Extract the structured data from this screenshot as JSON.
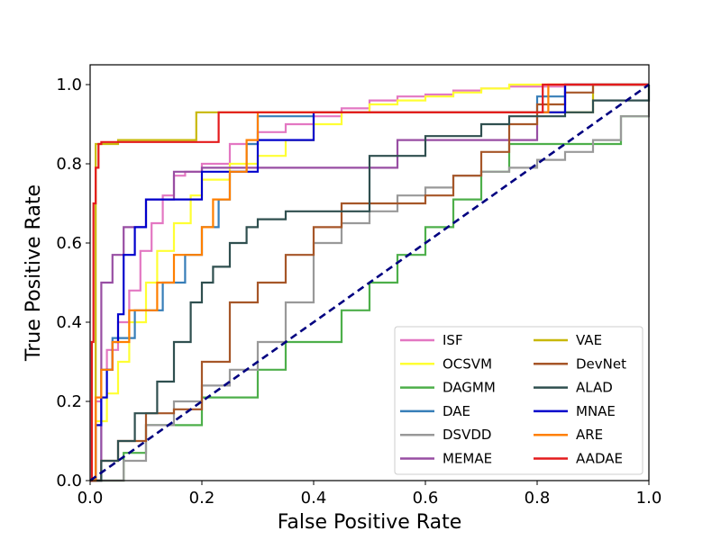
{
  "chart_data": {
    "type": "line",
    "title": "",
    "xlabel": "False Positive Rate",
    "ylabel": "True Positive Rate",
    "xlim": [
      0.0,
      1.0
    ],
    "ylim": [
      0.0,
      1.05
    ],
    "xticks": [
      "0.0",
      "0.2",
      "0.4",
      "0.6",
      "0.8",
      "1.0"
    ],
    "yticks": [
      "0.0",
      "0.2",
      "0.4",
      "0.6",
      "0.8",
      "1.0"
    ],
    "grid": false,
    "legend_position": "lower-right",
    "legend_columns": 2,
    "series": [
      {
        "name": "ISF",
        "color": "#e377c2",
        "x": [
          0,
          0.01,
          0.02,
          0.03,
          0.05,
          0.07,
          0.09,
          0.11,
          0.13,
          0.15,
          0.17,
          0.2,
          0.25,
          0.3,
          0.35,
          0.4,
          0.45,
          0.5,
          0.55,
          0.6,
          0.65,
          0.7,
          0.75,
          0.8,
          0.85,
          0.9,
          0.95,
          1.0
        ],
        "y": [
          0,
          0.2,
          0.28,
          0.33,
          0.4,
          0.48,
          0.58,
          0.65,
          0.72,
          0.77,
          0.78,
          0.8,
          0.85,
          0.88,
          0.9,
          0.92,
          0.94,
          0.96,
          0.97,
          0.975,
          0.985,
          0.99,
          0.995,
          0.995,
          1.0,
          1.0,
          1.0,
          1.0
        ]
      },
      {
        "name": "OCSVM",
        "color": "#ffff33",
        "x": [
          0,
          0.01,
          0.03,
          0.05,
          0.07,
          0.1,
          0.12,
          0.15,
          0.18,
          0.2,
          0.25,
          0.3,
          0.35,
          0.4,
          0.45,
          0.5,
          0.55,
          0.6,
          0.65,
          0.7,
          0.75,
          0.8,
          0.85,
          0.9,
          0.95,
          1.0
        ],
        "y": [
          0,
          0.15,
          0.22,
          0.3,
          0.4,
          0.5,
          0.58,
          0.65,
          0.72,
          0.76,
          0.8,
          0.82,
          0.86,
          0.9,
          0.93,
          0.95,
          0.96,
          0.97,
          0.98,
          0.99,
          1.0,
          1.0,
          1.0,
          1.0,
          1.0,
          1.0
        ]
      },
      {
        "name": "DAGMM",
        "color": "#4daf4a",
        "x": [
          0,
          0.06,
          0.1,
          0.15,
          0.2,
          0.25,
          0.3,
          0.35,
          0.4,
          0.45,
          0.5,
          0.55,
          0.6,
          0.65,
          0.7,
          0.75,
          0.8,
          0.85,
          0.9,
          0.95,
          1.0
        ],
        "y": [
          0,
          0.07,
          0.14,
          0.14,
          0.21,
          0.21,
          0.28,
          0.35,
          0.35,
          0.43,
          0.5,
          0.57,
          0.64,
          0.71,
          0.78,
          0.85,
          0.85,
          0.85,
          0.85,
          0.92,
          0.92
        ]
      },
      {
        "name": "DAE",
        "color": "#377eb8",
        "x": [
          0,
          0.02,
          0.04,
          0.08,
          0.13,
          0.17,
          0.2,
          0.23,
          0.25,
          0.28,
          0.3,
          0.35,
          0.4,
          0.5,
          0.6,
          0.7,
          0.8,
          0.85,
          0.9,
          0.95,
          1.0
        ],
        "y": [
          0,
          0.28,
          0.36,
          0.43,
          0.5,
          0.57,
          0.64,
          0.71,
          0.78,
          0.85,
          0.92,
          0.92,
          0.93,
          0.93,
          0.93,
          0.93,
          0.97,
          1.0,
          1.0,
          1.0,
          1.0
        ]
      },
      {
        "name": "DSVDD",
        "color": "#999999",
        "x": [
          0,
          0.06,
          0.1,
          0.15,
          0.2,
          0.25,
          0.3,
          0.35,
          0.4,
          0.45,
          0.5,
          0.55,
          0.6,
          0.65,
          0.7,
          0.75,
          0.8,
          0.85,
          0.9,
          0.95,
          1.0
        ],
        "y": [
          0,
          0.05,
          0.14,
          0.2,
          0.24,
          0.28,
          0.35,
          0.45,
          0.6,
          0.65,
          0.68,
          0.72,
          0.74,
          0.77,
          0.78,
          0.79,
          0.81,
          0.83,
          0.86,
          0.92,
          1.0
        ]
      },
      {
        "name": "MEMAE",
        "color": "#984ea3",
        "x": [
          0,
          0.02,
          0.04,
          0.06,
          0.1,
          0.15,
          0.2,
          0.25,
          0.3,
          0.4,
          0.5,
          0.55,
          0.6,
          0.7,
          0.75,
          0.8,
          0.85,
          1.0
        ],
        "y": [
          0,
          0.5,
          0.57,
          0.64,
          0.71,
          0.78,
          0.79,
          0.79,
          0.79,
          0.79,
          0.79,
          0.86,
          0.86,
          0.86,
          0.86,
          0.93,
          1.0,
          1.0
        ]
      },
      {
        "name": "VAE",
        "color": "#c8b80a",
        "x": [
          0,
          0.01,
          0.05,
          0.1,
          0.15,
          0.19,
          0.23,
          0.3,
          0.4,
          0.5,
          0.6,
          0.7,
          0.8,
          0.9,
          0.94,
          1.0
        ],
        "y": [
          0,
          0.85,
          0.86,
          0.86,
          0.86,
          0.93,
          0.93,
          0.93,
          0.93,
          0.93,
          0.93,
          0.93,
          0.93,
          1.0,
          1.0,
          1.0
        ]
      },
      {
        "name": "DevNet",
        "color": "#a65628",
        "x": [
          0,
          0.02,
          0.05,
          0.1,
          0.15,
          0.2,
          0.25,
          0.3,
          0.35,
          0.4,
          0.45,
          0.5,
          0.55,
          0.6,
          0.65,
          0.7,
          0.75,
          0.8,
          0.85,
          0.9,
          1.0
        ],
        "y": [
          0,
          0.05,
          0.1,
          0.17,
          0.18,
          0.3,
          0.45,
          0.5,
          0.57,
          0.64,
          0.7,
          0.7,
          0.7,
          0.72,
          0.77,
          0.83,
          0.9,
          0.95,
          0.98,
          1.0,
          1.0
        ]
      },
      {
        "name": "ALAD",
        "color": "#2f4f4f",
        "x": [
          0,
          0.02,
          0.05,
          0.08,
          0.12,
          0.15,
          0.18,
          0.2,
          0.22,
          0.25,
          0.28,
          0.3,
          0.35,
          0.4,
          0.45,
          0.5,
          0.6,
          0.7,
          0.75,
          0.8,
          0.85,
          0.9,
          1.0
        ],
        "y": [
          0,
          0.05,
          0.1,
          0.17,
          0.25,
          0.35,
          0.45,
          0.5,
          0.54,
          0.6,
          0.64,
          0.66,
          0.68,
          0.68,
          0.68,
          0.82,
          0.87,
          0.9,
          0.92,
          0.92,
          0.93,
          0.96,
          1.0
        ]
      },
      {
        "name": "MNAE",
        "color": "#0000cc",
        "x": [
          0,
          0.01,
          0.02,
          0.03,
          0.04,
          0.05,
          0.06,
          0.08,
          0.1,
          0.13,
          0.17,
          0.2,
          0.25,
          0.3,
          0.35,
          0.4,
          0.5,
          0.6,
          0.7,
          0.8,
          0.85,
          0.9,
          1.0
        ],
        "y": [
          0,
          0.14,
          0.21,
          0.28,
          0.35,
          0.42,
          0.57,
          0.64,
          0.71,
          0.71,
          0.71,
          0.78,
          0.78,
          0.86,
          0.86,
          0.93,
          0.93,
          0.93,
          0.93,
          0.93,
          1.0,
          1.0,
          1.0
        ]
      },
      {
        "name": "ARE",
        "color": "#ff7f00",
        "x": [
          0,
          0.01,
          0.02,
          0.04,
          0.07,
          0.12,
          0.15,
          0.2,
          0.22,
          0.25,
          0.28,
          0.3,
          0.4,
          0.5,
          0.6,
          0.7,
          0.8,
          0.82,
          0.85,
          0.9,
          1.0
        ],
        "y": [
          0,
          0.21,
          0.28,
          0.35,
          0.43,
          0.5,
          0.57,
          0.64,
          0.71,
          0.78,
          0.86,
          0.93,
          0.93,
          0.93,
          0.93,
          0.93,
          0.93,
          1.0,
          1.0,
          1.0,
          1.0
        ]
      },
      {
        "name": "AADAE",
        "color": "#e41a1c",
        "x": [
          0,
          0.003,
          0.006,
          0.01,
          0.015,
          0.02,
          0.05,
          0.1,
          0.15,
          0.23,
          0.3,
          0.4,
          0.5,
          0.6,
          0.7,
          0.8,
          0.81,
          0.9,
          1.0
        ],
        "y": [
          0,
          0.35,
          0.7,
          0.79,
          0.85,
          0.855,
          0.855,
          0.855,
          0.855,
          0.93,
          0.93,
          0.93,
          0.93,
          0.93,
          0.93,
          0.93,
          1.0,
          1.0,
          1.0
        ]
      }
    ],
    "reference_line": {
      "color": "#000080",
      "style": "dashed",
      "x": [
        0,
        1
      ],
      "y": [
        0,
        1
      ]
    }
  }
}
